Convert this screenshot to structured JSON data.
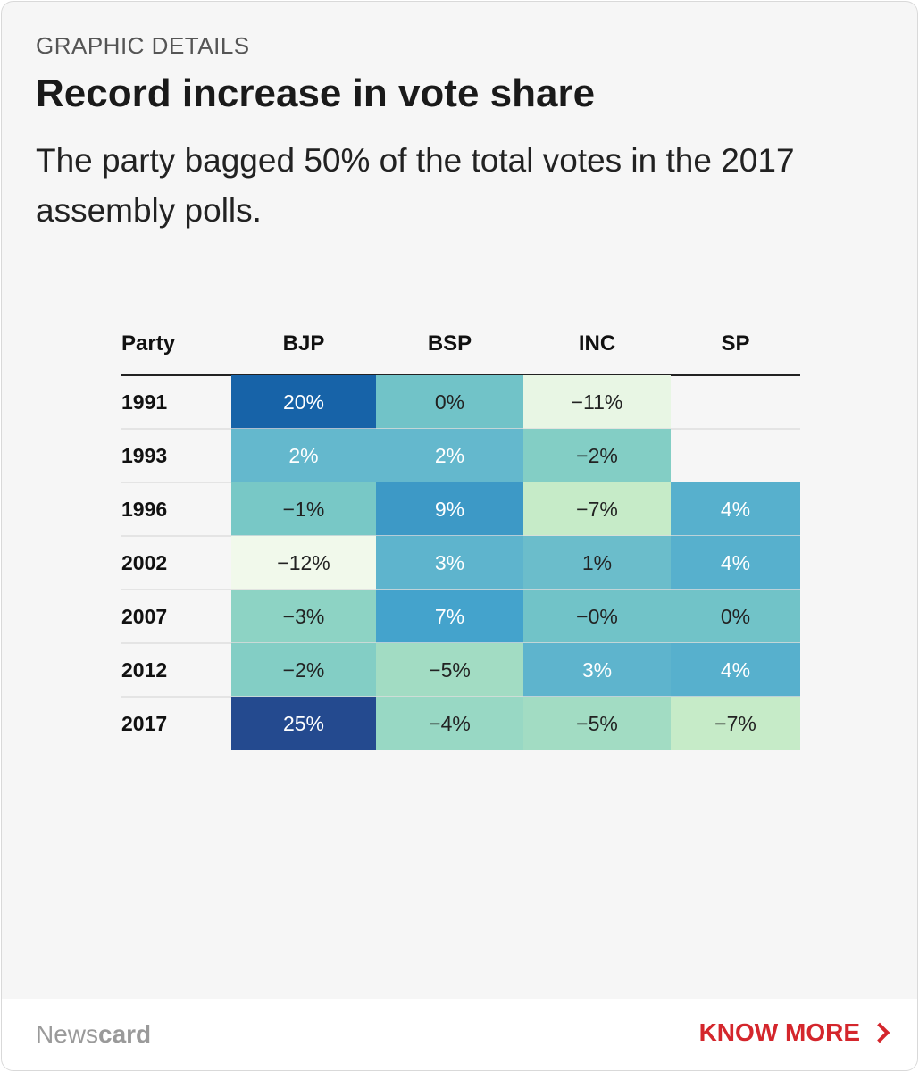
{
  "header": {
    "eyebrow": "GRAPHIC DETAILS",
    "title": "Record increase in vote share",
    "subtitle": "The party bagged 50% of the total votes in the 2017 assembly polls."
  },
  "footer": {
    "brand_light": "News",
    "brand_bold": "card",
    "cta_label": "KNOW MORE"
  },
  "chart_data": {
    "type": "heatmap",
    "row_header": "Party",
    "columns": [
      "BJP",
      "BSP",
      "INC",
      "SP"
    ],
    "rows": [
      {
        "year": "1991",
        "values": [
          20,
          0,
          -11,
          null
        ],
        "labels": [
          "20%",
          "0%",
          "−11%",
          ""
        ]
      },
      {
        "year": "1993",
        "values": [
          2,
          2,
          -2,
          null
        ],
        "labels": [
          "2%",
          "2%",
          "−2%",
          ""
        ]
      },
      {
        "year": "1996",
        "values": [
          -1,
          9,
          -7,
          4
        ],
        "labels": [
          "−1%",
          "9%",
          "−7%",
          "4%"
        ]
      },
      {
        "year": "2002",
        "values": [
          -12,
          3,
          1,
          4
        ],
        "labels": [
          "−12%",
          "3%",
          "1%",
          "4%"
        ]
      },
      {
        "year": "2007",
        "values": [
          -3,
          7,
          0,
          0
        ],
        "labels": [
          "−3%",
          "7%",
          "−0%",
          "0%"
        ]
      },
      {
        "year": "2012",
        "values": [
          -2,
          -5,
          3,
          4
        ],
        "labels": [
          "−2%",
          "−5%",
          "3%",
          "4%"
        ]
      },
      {
        "year": "2017",
        "values": [
          25,
          -4,
          -5,
          -7
        ],
        "labels": [
          "25%",
          "−4%",
          "−5%",
          "−7%"
        ]
      }
    ],
    "color_scale": [
      "#f1f9eb",
      "#c6ebc8",
      "#a2dcc3",
      "#8dd3c4",
      "#78c8c6",
      "#64b8cd",
      "#44a3cc",
      "#1763a8",
      "#244a8f"
    ]
  }
}
